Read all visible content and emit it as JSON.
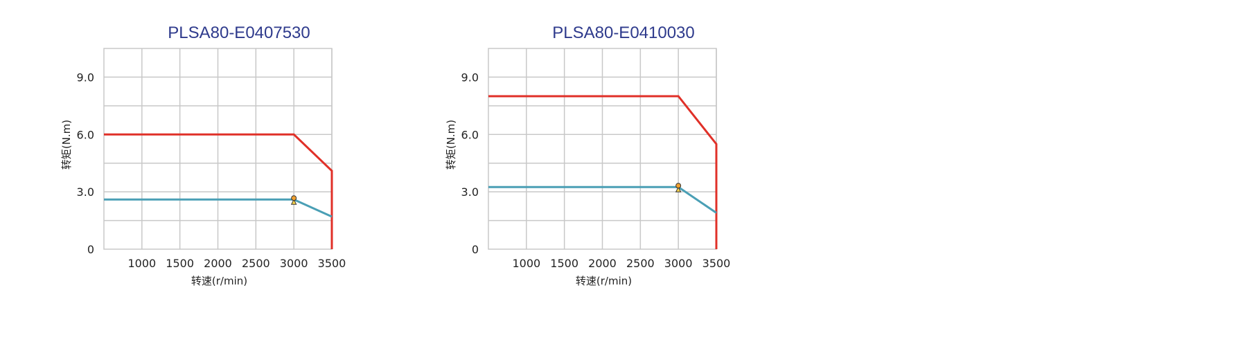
{
  "chart_data": [
    {
      "type": "line",
      "title": "PLSA80-E0407530",
      "xlabel": "转速(r/min)",
      "ylabel": "转矩(N.m)",
      "xlim": [
        500,
        3500
      ],
      "ylim": [
        0,
        10.5
      ],
      "x_ticks": [
        1000,
        1500,
        2000,
        2500,
        3000,
        3500
      ],
      "x_tick_labels": [
        "1000",
        "1500",
        "2000",
        "2500",
        "3000",
        "3500"
      ],
      "y_ticks": [
        0,
        3.0,
        6.0,
        9.0
      ],
      "y_tick_labels": [
        "0",
        "3.0",
        "6.0",
        "9.0"
      ],
      "grid": true,
      "series": [
        {
          "color": "#e03028",
          "x": [
            500,
            3000,
            3500,
            3500
          ],
          "y": [
            6.0,
            6.0,
            4.1,
            0
          ]
        },
        {
          "color": "#4a9fb5",
          "x": [
            500,
            3000,
            3500
          ],
          "y": [
            2.6,
            2.6,
            1.7
          ]
        }
      ],
      "marker": {
        "x": 3000,
        "y": 2.6,
        "color": "#f0a030"
      }
    },
    {
      "type": "line",
      "title": "PLSA80-E0410030",
      "xlabel": "转速(r/min)",
      "ylabel": "转矩(N.m)",
      "xlim": [
        500,
        3500
      ],
      "ylim": [
        0,
        10.5
      ],
      "x_ticks": [
        1000,
        1500,
        2000,
        2500,
        3000,
        3500
      ],
      "x_tick_labels": [
        "1000",
        "1500",
        "2000",
        "2500",
        "3000",
        "3500"
      ],
      "y_ticks": [
        0,
        3.0,
        6.0,
        9.0
      ],
      "y_tick_labels": [
        "0",
        "3.0",
        "6.0",
        "9.0"
      ],
      "grid": true,
      "series": [
        {
          "color": "#e03028",
          "x": [
            500,
            3000,
            3500,
            3500
          ],
          "y": [
            8.0,
            8.0,
            5.5,
            0
          ]
        },
        {
          "color": "#4a9fb5",
          "x": [
            500,
            3000,
            3500
          ],
          "y": [
            3.25,
            3.25,
            1.9
          ]
        }
      ],
      "marker": {
        "x": 3000,
        "y": 3.25,
        "color": "#f0a030"
      }
    }
  ]
}
